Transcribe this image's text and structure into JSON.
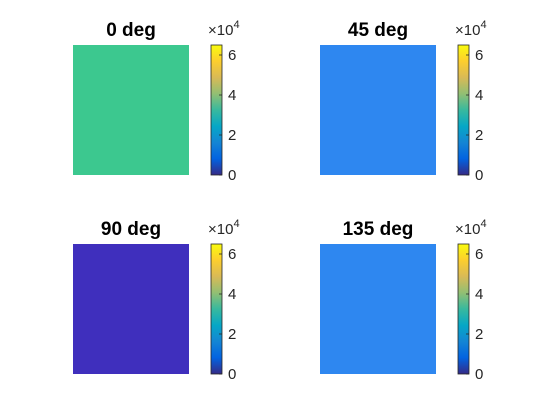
{
  "chart_data": [
    {
      "type": "heatmap",
      "title": "0 deg",
      "value": 37000,
      "colorbar": {
        "range": [
          0,
          65000
        ],
        "ticks": [
          "0",
          "2",
          "4",
          "6"
        ],
        "tick_values": [
          0,
          20000,
          40000,
          60000
        ],
        "exponent_label": {
          "base": "×10",
          "power": "4"
        }
      }
    },
    {
      "type": "heatmap",
      "title": "45 deg",
      "value": 20000,
      "colorbar": {
        "range": [
          0,
          65000
        ],
        "ticks": [
          "0",
          "2",
          "4",
          "6"
        ],
        "tick_values": [
          0,
          20000,
          40000,
          60000
        ],
        "exponent_label": {
          "base": "×10",
          "power": "4"
        }
      }
    },
    {
      "type": "heatmap",
      "title": "90 deg",
      "value": 4500,
      "colorbar": {
        "range": [
          0,
          65000
        ],
        "ticks": [
          "0",
          "2",
          "4",
          "6"
        ],
        "tick_values": [
          0,
          20000,
          40000,
          60000
        ],
        "exponent_label": {
          "base": "×10",
          "power": "4"
        }
      }
    },
    {
      "type": "heatmap",
      "title": "135 deg",
      "value": 20000,
      "colorbar": {
        "range": [
          0,
          65000
        ],
        "ticks": [
          "0",
          "2",
          "4",
          "6"
        ],
        "tick_values": [
          0,
          20000,
          40000,
          60000
        ],
        "exponent_label": {
          "base": "×10",
          "power": "4"
        }
      }
    }
  ],
  "colormap": "parula",
  "colors": {
    "panel_0": "#3cc88f",
    "panel_45": "#2e87f0",
    "panel_90": "#3f2fbd",
    "panel_135": "#2e87f0"
  }
}
